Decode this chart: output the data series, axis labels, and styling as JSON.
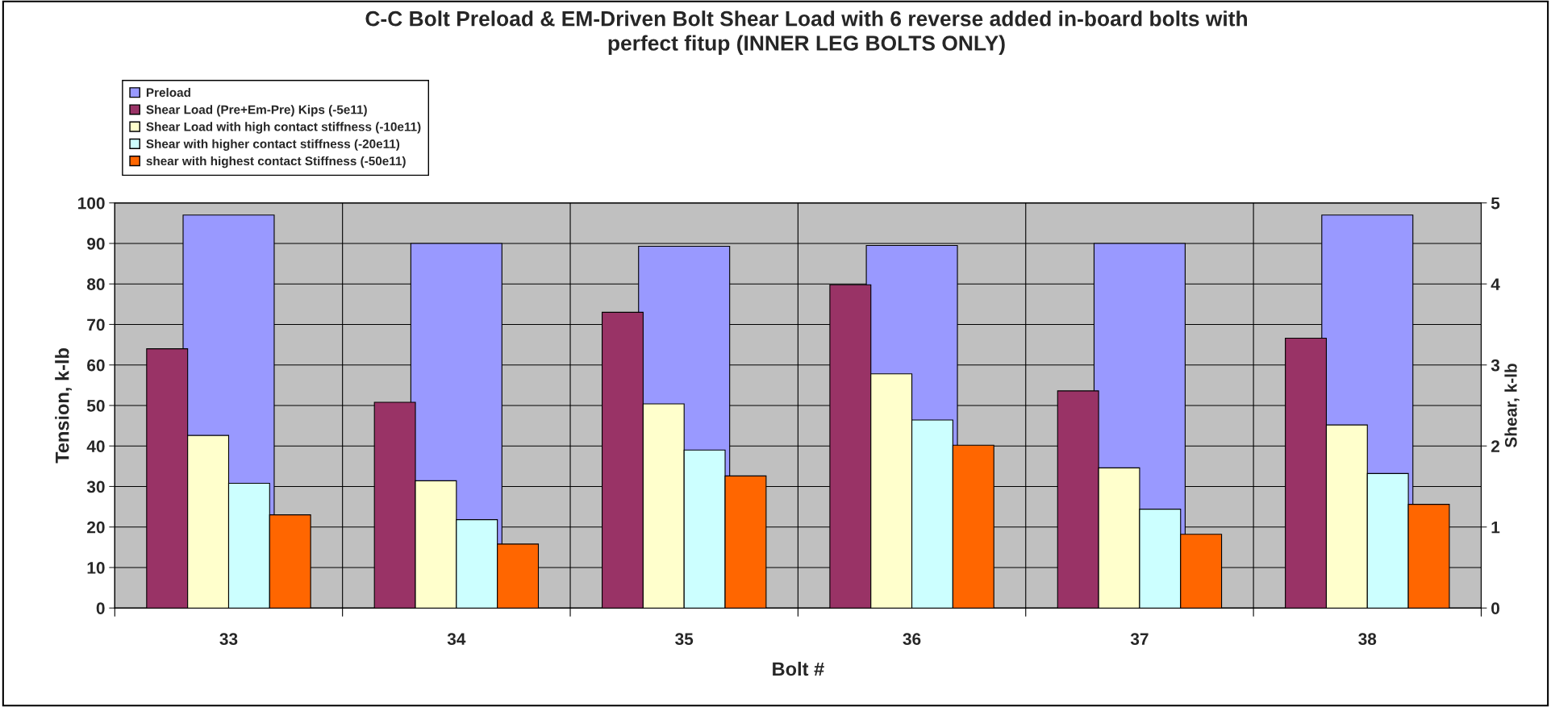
{
  "chart_data": {
    "type": "bar",
    "title": "C-C Bolt Preload & EM-Driven Bolt Shear Load with 6 reverse added in-board bolts with\nperfect fitup (INNER LEG BOLTS ONLY)",
    "xlabel": "Bolt #",
    "ylabel": "Tension, k-lb",
    "y2label": "Shear, k-lb",
    "categories": [
      "33",
      "34",
      "35",
      "36",
      "37",
      "38"
    ],
    "series": [
      {
        "name": "Preload",
        "color": "#9999ff",
        "axis": "y",
        "values": [
          97,
          90,
          89.3,
          89.5,
          90,
          97
        ]
      },
      {
        "name": "Shear Load (Pre+Em-Pre) Kips (-5e11)",
        "color": "#993366",
        "axis": "y2",
        "values": [
          3.2,
          2.54,
          3.65,
          3.99,
          2.68,
          3.33
        ]
      },
      {
        "name": "Shear Load with high contact stiffness (-10e11)",
        "color": "#ffffcc",
        "axis": "y2",
        "values": [
          2.13,
          1.57,
          2.52,
          2.89,
          1.73,
          2.26
        ]
      },
      {
        "name": "Shear with higher contact stiffness (-20e11)",
        "color": "#ccffff",
        "axis": "y2",
        "values": [
          1.54,
          1.09,
          1.95,
          2.32,
          1.22,
          1.66
        ]
      },
      {
        "name": "shear with highest contact Stiffness (-50e11)",
        "color": "#ff6600",
        "axis": "y2",
        "values": [
          1.15,
          0.79,
          1.63,
          2.01,
          0.91,
          1.28
        ]
      }
    ],
    "ylim": [
      0,
      100
    ],
    "yticks": [
      0,
      10,
      20,
      30,
      40,
      50,
      60,
      70,
      80,
      90,
      100
    ],
    "y2lim": [
      0,
      5
    ],
    "y2ticks": [
      0,
      1,
      2,
      3,
      4,
      5
    ],
    "grid": true,
    "legend": "top left"
  }
}
